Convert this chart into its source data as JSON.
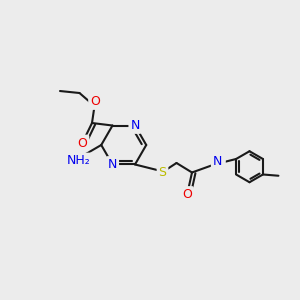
{
  "bg_color": "#ececec",
  "bond_color": "#1a1a1a",
  "bond_width": 1.5,
  "atom_colors": {
    "N": "#0000ee",
    "O": "#ee0000",
    "S": "#bbbb00",
    "C": "#1a1a1a"
  },
  "font_size": 8.5,
  "figsize": [
    3.0,
    3.0
  ],
  "dpi": 100,
  "xlim": [
    -1.0,
    11.0
  ],
  "ylim": [
    -1.0,
    11.0
  ]
}
